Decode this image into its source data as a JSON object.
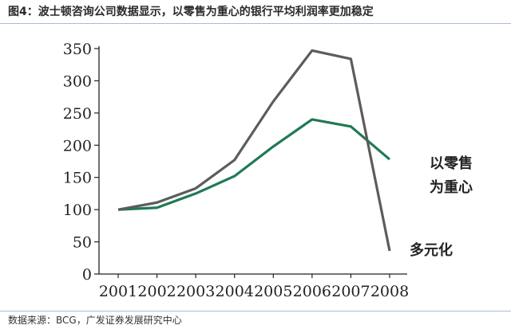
{
  "title": "图4：波士顿咨询公司数据显示，以零售为重心的银行平均利润率更加稳定",
  "source": "数据来源：BCG，广发证券发展研究中心",
  "chart_data": {
    "type": "line",
    "title": "图4：波士顿咨询公司数据显示，以零售为重心的银行平均利润率更加稳定",
    "xlabel": "",
    "ylabel": "",
    "categories": [
      "2001",
      "2002",
      "2003",
      "2004",
      "2005",
      "2006",
      "2007",
      "2008"
    ],
    "yticks": [
      "0",
      "50",
      "100",
      "150",
      "200",
      "250",
      "300",
      "350"
    ],
    "ylim": [
      0,
      350
    ],
    "grid": false,
    "series": [
      {
        "name": "以零售为重心",
        "label_lines": [
          "以零售",
          "为重心"
        ],
        "color": "#1f7a52",
        "values": [
          100,
          103,
          125,
          152,
          198,
          240,
          229,
          178
        ]
      },
      {
        "name": "多元化",
        "label_lines": [
          "多元化"
        ],
        "color": "#5c5c5c",
        "values": [
          100,
          111,
          133,
          177,
          268,
          347,
          334,
          36
        ]
      }
    ]
  }
}
